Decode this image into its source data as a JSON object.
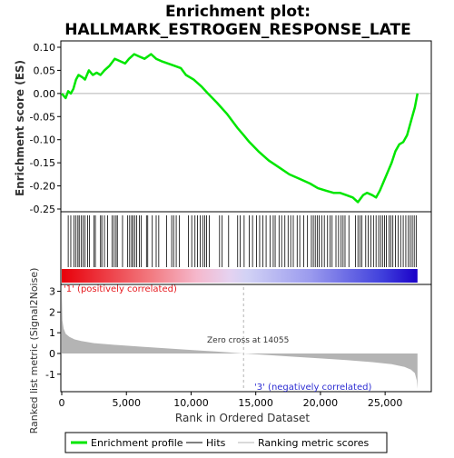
{
  "title_line1": "Enrichment plot:",
  "title_line2": "HALLMARK_ESTROGEN_RESPONSE_LATE",
  "colors": {
    "es_line": "#00e600",
    "hits": "#000000",
    "metric_fill": "#b4b4b4",
    "pos_label": "#e6191e",
    "neg_label": "#2d2dd2",
    "zero_line": "#b4b4b4",
    "frame": "#000000"
  },
  "chart_data": [
    {
      "type": "line",
      "name": "enrichment-score",
      "ylabel": "Enrichment score (ES)",
      "ylim": [
        -0.25,
        0.1
      ],
      "y_ticks": [
        0.1,
        0.05,
        0.0,
        -0.05,
        -0.1,
        -0.15,
        -0.2,
        -0.25
      ],
      "y_tick_labels": [
        "0.10",
        "0.05",
        "0.00",
        "-0.05",
        "-0.10",
        "-0.15",
        "-0.20",
        "-0.25"
      ],
      "xlim": [
        0,
        28500
      ],
      "series": [
        {
          "name": "Enrichment profile",
          "x": [
            0,
            300,
            500,
            700,
            900,
            1100,
            1300,
            1600,
            1800,
            2100,
            2400,
            2700,
            3000,
            3300,
            3700,
            4100,
            4500,
            4900,
            5200,
            5600,
            6000,
            6400,
            6900,
            7300,
            7700,
            8200,
            8700,
            9200,
            9600,
            10200,
            10800,
            11300,
            12000,
            12800,
            13600,
            14055,
            14500,
            15200,
            16000,
            16800,
            17600,
            18400,
            19200,
            19800,
            20400,
            21000,
            21500,
            22000,
            22500,
            22900,
            23300,
            23600,
            24000,
            24300,
            24600,
            24900,
            25200,
            25500,
            25800,
            26100,
            26400,
            26700,
            27000,
            27300,
            27500
          ],
          "y": [
            0.0,
            -0.01,
            0.005,
            0.0,
            0.01,
            0.03,
            0.04,
            0.035,
            0.03,
            0.05,
            0.04,
            0.045,
            0.04,
            0.05,
            0.06,
            0.075,
            0.07,
            0.065,
            0.075,
            0.085,
            0.08,
            0.075,
            0.085,
            0.075,
            0.07,
            0.065,
            0.06,
            0.055,
            0.04,
            0.03,
            0.015,
            0.0,
            -0.02,
            -0.045,
            -0.075,
            -0.09,
            -0.105,
            -0.125,
            -0.145,
            -0.16,
            -0.175,
            -0.185,
            -0.195,
            -0.205,
            -0.21,
            -0.215,
            -0.215,
            -0.22,
            -0.225,
            -0.235,
            -0.22,
            -0.215,
            -0.22,
            -0.225,
            -0.21,
            -0.19,
            -0.17,
            -0.15,
            -0.125,
            -0.11,
            -0.105,
            -0.09,
            -0.06,
            -0.03,
            0.0
          ]
        }
      ]
    },
    {
      "type": "bar",
      "name": "ranked-list-metric",
      "xlabel": "Rank in Ordered Dataset",
      "ylabel": "Ranked list metric (Signal2Noise)",
      "xlim": [
        0,
        28500
      ],
      "ylim": [
        -1.8,
        3.2
      ],
      "x_ticks": [
        0,
        5000,
        10000,
        15000,
        20000,
        25000
      ],
      "x_tick_labels": [
        "0",
        "5,000",
        "10,000",
        "15,000",
        "20,000",
        "25,000"
      ],
      "y_ticks": [
        3,
        2,
        1,
        0,
        -1
      ],
      "y_tick_labels": [
        "3",
        "2",
        "1",
        "0",
        "-1"
      ],
      "profile_x": [
        0,
        50,
        150,
        300,
        600,
        1000,
        1500,
        2500,
        4000,
        6000,
        8000,
        10000,
        12000,
        14055,
        16000,
        18000,
        20000,
        22000,
        24000,
        25500,
        26500,
        27000,
        27300,
        27450,
        27500
      ],
      "profile_y": [
        3.0,
        1.6,
        1.2,
        0.95,
        0.8,
        0.68,
        0.6,
        0.5,
        0.42,
        0.33,
        0.25,
        0.17,
        0.09,
        0.0,
        -0.08,
        -0.16,
        -0.24,
        -0.32,
        -0.42,
        -0.52,
        -0.65,
        -0.78,
        -0.95,
        -1.3,
        -1.7
      ],
      "zero_cross_label": "Zero cross at 14055",
      "zero_cross_x": 14055,
      "pos_label": "'1' (positively correlated)",
      "neg_label": "'3' (negatively correlated)"
    },
    {
      "type": "table",
      "name": "gene-hits",
      "xlim": [
        0,
        28500
      ],
      "hits": [
        500,
        700,
        950,
        1100,
        1250,
        1350,
        1500,
        1650,
        1800,
        2000,
        2150,
        2500,
        2600,
        3000,
        3100,
        3300,
        3550,
        3900,
        4050,
        4200,
        4300,
        4700,
        5100,
        5250,
        5400,
        5500,
        5650,
        5800,
        6000,
        6150,
        6550,
        6650,
        7000,
        7300,
        7500,
        8100,
        8500,
        8650,
        8850,
        9100,
        9800,
        10050,
        10300,
        10500,
        10700,
        10900,
        11050,
        11200,
        11400,
        12200,
        12400,
        12900,
        13600,
        13800,
        14100,
        14500,
        14750,
        15050,
        15300,
        15550,
        15800,
        16100,
        16350,
        16500,
        16800,
        17000,
        17250,
        17500,
        17700,
        17900,
        18200,
        18400,
        18700,
        19000,
        19300,
        19450,
        19600,
        19750,
        19900,
        20100,
        20300,
        20550,
        20750,
        20900,
        21200,
        21400,
        21600,
        21750,
        21900,
        22200,
        22700,
        22900,
        23050,
        23200,
        23500,
        23700,
        23900,
        24100,
        24300,
        24500,
        24650,
        24800,
        24950,
        25100,
        25300,
        25450,
        25600,
        25800,
        26000,
        26200,
        26400,
        26600,
        26800,
        26950,
        27100,
        27250,
        27400
      ]
    }
  ],
  "legend": {
    "items": [
      "Enrichment profile",
      "Hits",
      "Ranking metric scores"
    ]
  }
}
